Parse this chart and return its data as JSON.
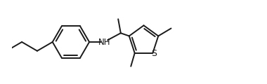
{
  "bg_color": "#ffffff",
  "line_color": "#1a1a1a",
  "bond_width": 1.4,
  "figsize": [
    3.8,
    1.2
  ],
  "dpi": 100,
  "S_label": "S",
  "NH_label": "NH",
  "font_size": 8.5,
  "font_color": "#1a1a1a",
  "xlim": [
    0.0,
    9.5
  ],
  "ylim": [
    0.5,
    3.8
  ]
}
